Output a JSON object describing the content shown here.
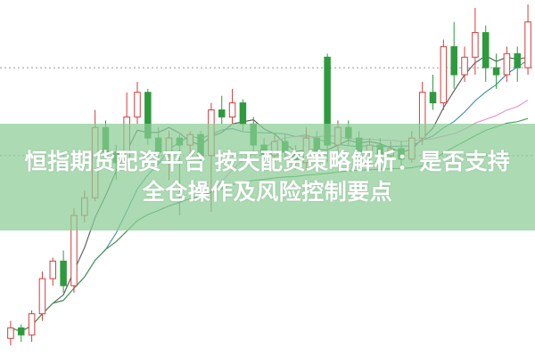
{
  "title_line1": "恒指期货配资平台 按天配资策略解析：是否支持",
  "title_line2": "全仓操作及风险控制要点",
  "chart_data": {
    "type": "candlestick",
    "ylim": [
      0,
      100
    ],
    "grid": "dotted horizontal",
    "up_color": "#d23c3c",
    "down_color": "#2e9a3e",
    "reference_levels": [
      82,
      57
    ],
    "candles": [
      [
        5,
        8,
        10,
        3
      ],
      [
        8,
        6,
        9,
        4
      ],
      [
        6,
        12,
        13,
        4
      ],
      [
        12,
        22,
        24,
        10
      ],
      [
        22,
        27,
        28,
        20
      ],
      [
        27,
        20,
        30,
        18
      ],
      [
        20,
        40,
        42,
        18
      ],
      [
        40,
        45,
        47,
        38
      ],
      [
        45,
        65,
        70,
        44
      ],
      [
        65,
        58,
        67,
        56
      ],
      [
        58,
        55,
        60,
        50
      ],
      [
        55,
        68,
        75,
        53
      ],
      [
        68,
        75,
        78,
        66
      ],
      [
        75,
        62,
        76,
        60
      ],
      [
        62,
        58,
        65,
        55
      ],
      [
        58,
        62,
        64,
        50
      ],
      [
        62,
        60,
        63,
        40
      ],
      [
        60,
        63,
        64,
        56
      ],
      [
        63,
        57,
        64,
        54
      ],
      [
        57,
        70,
        72,
        41
      ],
      [
        70,
        68,
        74,
        66
      ],
      [
        68,
        72,
        76,
        66
      ],
      [
        72,
        66,
        73,
        64
      ],
      [
        66,
        60,
        68,
        58
      ],
      [
        60,
        57,
        62,
        55
      ],
      [
        57,
        61,
        63,
        55
      ],
      [
        61,
        58,
        63,
        56
      ],
      [
        58,
        55,
        60,
        53
      ],
      [
        55,
        62,
        65,
        53
      ],
      [
        62,
        58,
        64,
        55
      ],
      [
        85,
        60,
        86,
        55
      ],
      [
        60,
        65,
        67,
        58
      ],
      [
        65,
        62,
        67,
        60
      ],
      [
        62,
        58,
        64,
        56
      ],
      [
        58,
        60,
        62,
        55
      ],
      [
        60,
        57,
        62,
        55
      ],
      [
        57,
        59,
        61,
        54
      ],
      [
        59,
        56,
        61,
        54
      ],
      [
        56,
        62,
        64,
        55
      ],
      [
        62,
        75,
        78,
        60
      ],
      [
        75,
        72,
        80,
        70
      ],
      [
        72,
        88,
        90,
        70
      ],
      [
        88,
        80,
        95,
        76
      ],
      [
        80,
        85,
        88,
        78
      ],
      [
        85,
        92,
        99,
        80
      ],
      [
        92,
        82,
        94,
        78
      ],
      [
        82,
        80,
        86,
        76
      ],
      [
        80,
        86,
        88,
        78
      ],
      [
        86,
        82,
        88,
        78
      ],
      [
        82,
        95,
        100,
        80
      ]
    ],
    "moving_averages": [
      {
        "period": 5,
        "color": "#555555"
      },
      {
        "period": 10,
        "color": "#3a8fa0"
      },
      {
        "period": 20,
        "color": "#e58fd0"
      },
      {
        "period": 40,
        "color": "#3c9a4a"
      }
    ]
  }
}
